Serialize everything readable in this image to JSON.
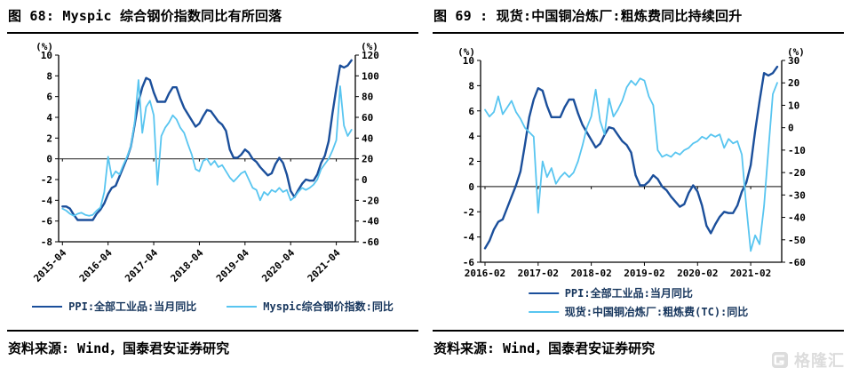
{
  "figures": [
    {
      "title": "图 68: Myspic 综合钢价指数同比有所回落",
      "source": "资料来源: Wind，国泰君安证券研究",
      "chart_data": {
        "type": "line",
        "x_unit": "month",
        "x_labels": [
          "2015-04",
          "2016-04",
          "2017-04",
          "2018-04",
          "2019-04",
          "2020-04",
          "2021-04"
        ],
        "x_label_months": [
          0,
          12,
          24,
          36,
          48,
          60,
          72
        ],
        "left_axis": {
          "unit": "(%)",
          "min": -8,
          "max": 10,
          "step": 2
        },
        "right_axis": {
          "unit": "(%)",
          "min": -60,
          "max": 120,
          "step": 20
        },
        "grid": "zero-line-only",
        "legend_position": "bottom",
        "series": [
          {
            "name": "PPI:全部工业品:当月同比",
            "axis": "left",
            "color": "#1B4F9B",
            "width": 2.4,
            "values": [
              -4.6,
              -4.6,
              -4.8,
              -5.4,
              -5.9,
              -5.9,
              -5.9,
              -5.9,
              -5.9,
              -5.3,
              -4.9,
              -4.3,
              -3.4,
              -2.8,
              -2.6,
              -1.7,
              -0.8,
              0.1,
              1.2,
              3.3,
              5.5,
              6.9,
              7.8,
              7.6,
              6.4,
              5.5,
              5.5,
              5.5,
              6.3,
              6.9,
              6.9,
              5.8,
              4.9,
              4.3,
              3.7,
              3.1,
              3.4,
              4.1,
              4.7,
              4.6,
              4.1,
              3.6,
              3.3,
              2.7,
              0.9,
              0.1,
              0.1,
              0.4,
              0.9,
              0.6,
              0.0,
              -0.3,
              -0.8,
              -1.2,
              -1.6,
              -1.4,
              -0.5,
              0.1,
              -0.4,
              -1.5,
              -3.1,
              -3.7,
              -3.0,
              -2.4,
              -2.0,
              -2.1,
              -2.1,
              -1.5,
              -0.4,
              0.3,
              1.7,
              4.4,
              6.8,
              9.0,
              8.8,
              9.0,
              9.5
            ]
          },
          {
            "name": "Myspic综合钢价指数:同比",
            "axis": "right",
            "color": "#58C5F0",
            "width": 1.8,
            "values": [
              -28,
              -30,
              -33,
              -35,
              -33,
              -32,
              -34,
              -35,
              -34,
              -30,
              -27,
              -12,
              22,
              2,
              8,
              5,
              14,
              22,
              32,
              55,
              96,
              45,
              70,
              76,
              62,
              -5,
              42,
              50,
              55,
              62,
              58,
              50,
              45,
              34,
              24,
              10,
              8,
              18,
              20,
              14,
              18,
              12,
              14,
              8,
              2,
              -2,
              2,
              6,
              8,
              0,
              -8,
              -10,
              -20,
              -12,
              -15,
              -10,
              -12,
              -8,
              -12,
              -10,
              -20,
              -17,
              -12,
              -8,
              -10,
              -8,
              -5,
              0,
              10,
              15,
              20,
              28,
              38,
              90,
              52,
              42,
              48
            ]
          }
        ]
      }
    },
    {
      "title": "图 69 : 现货:中国铜冶炼厂:粗炼费同比持续回升",
      "source": "资料来源: Wind，国泰君安证券研究",
      "chart_data": {
        "type": "line",
        "x_unit": "month",
        "x_labels": [
          "2016-02",
          "2017-02",
          "2018-02",
          "2019-02",
          "2020-02",
          "2021-02"
        ],
        "x_label_months": [
          0,
          12,
          24,
          36,
          48,
          60
        ],
        "left_axis": {
          "unit": "(%)",
          "min": -6,
          "max": 10,
          "step": 2
        },
        "right_axis": {
          "unit": "(%)",
          "min": -60,
          "max": 30,
          "step": 10
        },
        "grid": "zero-line-only",
        "legend_position": "bottom",
        "series": [
          {
            "name": "PPI:全部工业品:当月同比",
            "axis": "left",
            "color": "#1B4F9B",
            "width": 2.4,
            "values": [
              -4.9,
              -4.3,
              -3.4,
              -2.8,
              -2.6,
              -1.7,
              -0.8,
              0.1,
              1.2,
              3.3,
              5.5,
              6.9,
              7.8,
              7.6,
              6.4,
              5.5,
              5.5,
              5.5,
              6.3,
              6.9,
              6.9,
              5.8,
              4.9,
              4.3,
              3.7,
              3.1,
              3.4,
              4.1,
              4.7,
              4.6,
              4.1,
              3.6,
              3.3,
              2.7,
              0.9,
              0.1,
              0.1,
              0.4,
              0.9,
              0.6,
              0.0,
              -0.3,
              -0.8,
              -1.2,
              -1.6,
              -1.4,
              -0.5,
              0.1,
              -0.4,
              -1.5,
              -3.1,
              -3.7,
              -3.0,
              -2.4,
              -2.0,
              -2.1,
              -2.1,
              -1.5,
              -0.4,
              0.3,
              1.7,
              4.4,
              6.8,
              9.0,
              8.8,
              9.0,
              9.5
            ]
          },
          {
            "name": "现货:中国铜冶炼厂:粗炼费(TC):同比",
            "axis": "right",
            "color": "#58C5F0",
            "width": 1.8,
            "values": [
              8,
              5,
              7,
              14,
              6,
              9,
              12,
              7,
              4,
              0,
              -2,
              -4,
              -38,
              -15,
              -22,
              -18,
              -25,
              -22,
              -20,
              -22,
              -20,
              -15,
              -8,
              0,
              5,
              17,
              3,
              -3,
              13,
              5,
              8,
              12,
              18,
              21,
              19,
              22,
              21,
              14,
              10,
              -10,
              -13,
              -12,
              -13,
              -11,
              -12,
              -10,
              -9,
              -7,
              -6,
              -4,
              -5,
              -3,
              -4,
              -3,
              -9,
              -5,
              -7,
              -6,
              -12,
              -35,
              -55,
              -48,
              -52,
              -35,
              -10,
              15,
              20
            ]
          }
        ]
      }
    }
  ],
  "watermark": {
    "text": "格隆汇",
    "color": "#dcdcdc"
  }
}
